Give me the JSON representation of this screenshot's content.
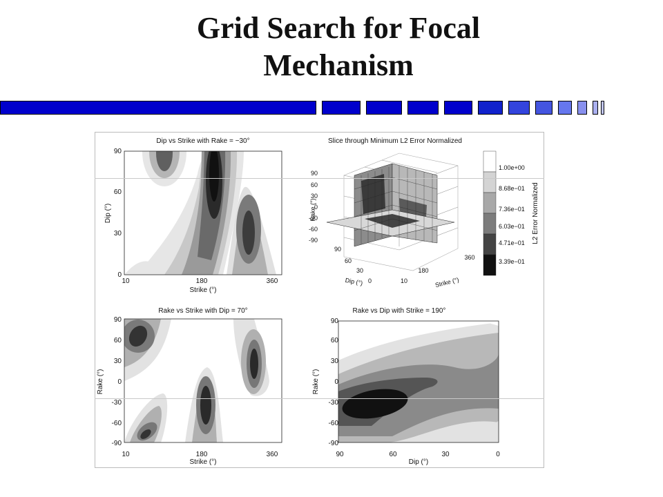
{
  "title": {
    "line1": "Grid Search for Focal",
    "line2": "Mechanism"
  },
  "colors": {
    "bar_dark": "#0000cc",
    "bar_mid": "#3344dd",
    "bar_light": "#6677ee",
    "bar_pale": "#aab0f0"
  },
  "chart_data": [
    {
      "type": "heatmap",
      "title": "Dip vs Strike with Rake = −30°",
      "xlabel": "Strike (°)",
      "ylabel": "Dip (°)",
      "xticks": [
        "10",
        "180",
        "360"
      ],
      "yticks": [
        "0",
        "30",
        "60",
        "90"
      ],
      "xlim": [
        10,
        360
      ],
      "ylim": [
        0,
        90
      ],
      "grid": false,
      "minima": [
        {
          "x": 100,
          "y": 88,
          "width": 18,
          "height": 22
        },
        {
          "x": 185,
          "y": 60,
          "width": 24,
          "height": 55
        },
        {
          "x": 270,
          "y": 35,
          "width": 30,
          "height": 35
        }
      ]
    },
    {
      "type": "heatmap",
      "title": "Slice through Minimum L2 Error Normalized",
      "xlabel": "Strike (°)",
      "ylabel": "Rake (°)",
      "zlabel": "Dip (°)",
      "xticks": [
        "10",
        "180",
        "360"
      ],
      "yticks": [
        "90",
        "60",
        "30",
        "0",
        "-30",
        "-60",
        "-90"
      ],
      "zticks": [
        "90",
        "60",
        "30",
        "0"
      ],
      "colorbar": {
        "label": "L2 Error Normalized",
        "ticks": [
          "1.00e+00",
          "8.68e−01",
          "7.36e−01",
          "6.03e−01",
          "4.71e−01",
          "3.39e−01"
        ]
      }
    },
    {
      "type": "heatmap",
      "title": "Rake vs Strike with Dip = 70°",
      "xlabel": "Strike (°)",
      "ylabel": "Rake (°)",
      "xticks": [
        "10",
        "180",
        "360"
      ],
      "yticks": [
        "-90",
        "-60",
        "-30",
        "0",
        "30",
        "60",
        "90"
      ],
      "xlim": [
        10,
        360
      ],
      "ylim": [
        -90,
        90
      ],
      "grid": false,
      "minima": [
        {
          "x": 40,
          "y": 65,
          "width": 24,
          "height": 40
        },
        {
          "x": 60,
          "y": -75,
          "width": 30,
          "height": 25
        },
        {
          "x": 185,
          "y": -45,
          "width": 24,
          "height": 45
        },
        {
          "x": 305,
          "y": 25,
          "width": 20,
          "height": 40
        }
      ]
    },
    {
      "type": "heatmap",
      "title": "Rake vs Dip with Strike = 190°",
      "xlabel": "Dip (°)",
      "ylabel": "Rake (°)",
      "xticks": [
        "90",
        "60",
        "30",
        "0"
      ],
      "yticks": [
        "-90",
        "-60",
        "-30",
        "0",
        "30",
        "60",
        "90"
      ],
      "xlim": [
        90,
        0
      ],
      "ylim": [
        -90,
        90
      ],
      "grid": false,
      "minima": [
        {
          "x": 72,
          "y": -40,
          "width": 30,
          "height": 25
        }
      ]
    }
  ]
}
